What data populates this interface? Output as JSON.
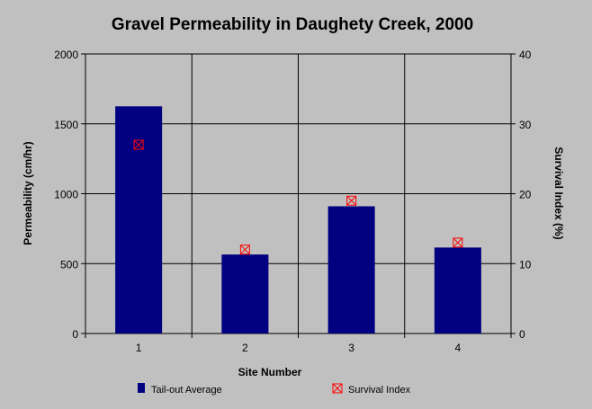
{
  "chart_data": {
    "type": "bar",
    "title": "Gravel Permeability in Daughety Creek, 2000",
    "xlabel": "Site Number",
    "ylabel": "Permeability (cm/hr)",
    "y2label": "Survival Index (%)",
    "categories": [
      "1",
      "2",
      "3",
      "4"
    ],
    "y_ticks": [
      "0",
      "500",
      "1000",
      "1500",
      "2000"
    ],
    "y2_ticks": [
      "0",
      "10",
      "20",
      "30",
      "40"
    ],
    "ylim": [
      0,
      2000
    ],
    "y2lim": [
      0,
      40
    ],
    "grid": true,
    "legend_position": "bottom",
    "series": [
      {
        "name": "Tail-out Average",
        "type": "bar",
        "axis": "left",
        "color": "#000080",
        "values": [
          1625,
          565,
          910,
          615
        ]
      },
      {
        "name": "Survival Index",
        "type": "scatter",
        "axis": "right",
        "color": "#ff0000",
        "marker": "boxed-x",
        "values": [
          27,
          12,
          19,
          13
        ]
      }
    ]
  }
}
